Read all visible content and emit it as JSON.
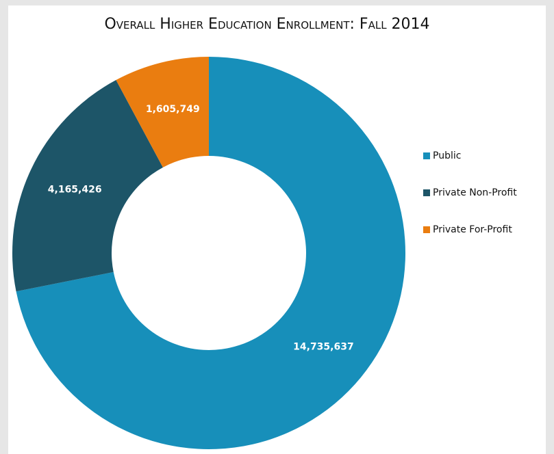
{
  "chart_data": {
    "type": "donut",
    "title": "Overall Higher Education Enrollment: Fall 2014",
    "categories": [
      "Public",
      "Private Non-Profit",
      "Private For-Profit"
    ],
    "values": [
      14735637,
      4165426,
      1605749
    ],
    "value_labels": [
      "14,735,637",
      "4,165,426",
      "1,605,749"
    ],
    "colors": [
      "#178fba",
      "#1d5568",
      "#ea7d10"
    ],
    "legend": "right"
  }
}
